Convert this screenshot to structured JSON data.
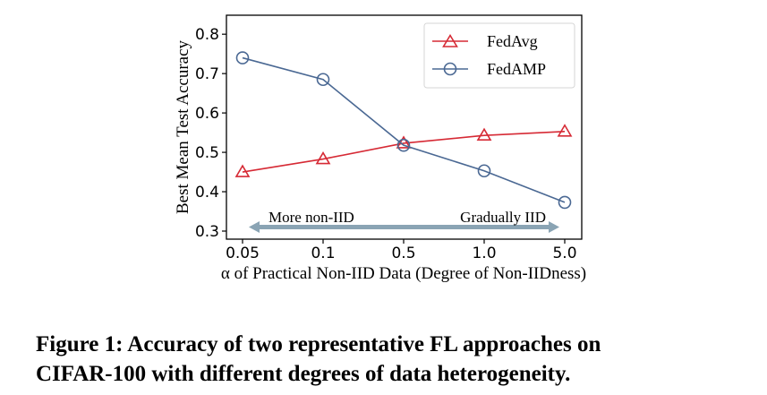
{
  "chart_data": {
    "type": "line",
    "categories": [
      "0.05",
      "0.1",
      "0.5",
      "1.0",
      "5.0"
    ],
    "xlabel": "α of Practical Non-IID Data (Degree of Non-IIDness)",
    "ylabel": "Best Mean Test Accuracy",
    "ylim": [
      0.3,
      0.83
    ],
    "yticks": [
      "0.3",
      "0.4",
      "0.5",
      "0.6",
      "0.7",
      "0.8"
    ],
    "grid": false,
    "legend_position": "top-right",
    "series": [
      {
        "name": "FedAvg",
        "values": [
          0.45,
          0.483,
          0.523,
          0.543,
          0.553
        ],
        "color": "#d62a35",
        "marker": "triangle"
      },
      {
        "name": "FedAMP",
        "values": [
          0.74,
          0.685,
          0.518,
          0.453,
          0.373
        ],
        "color": "#4a6893",
        "marker": "circle"
      }
    ],
    "annotations": {
      "left": "More non-IID",
      "right": "Gradually IID",
      "arrow_color": "#8aa4b4"
    }
  },
  "caption": {
    "line1": "Figure 1: Accuracy of two representative FL approaches on",
    "line2": "CIFAR-100 with different degrees of data heterogeneity."
  }
}
